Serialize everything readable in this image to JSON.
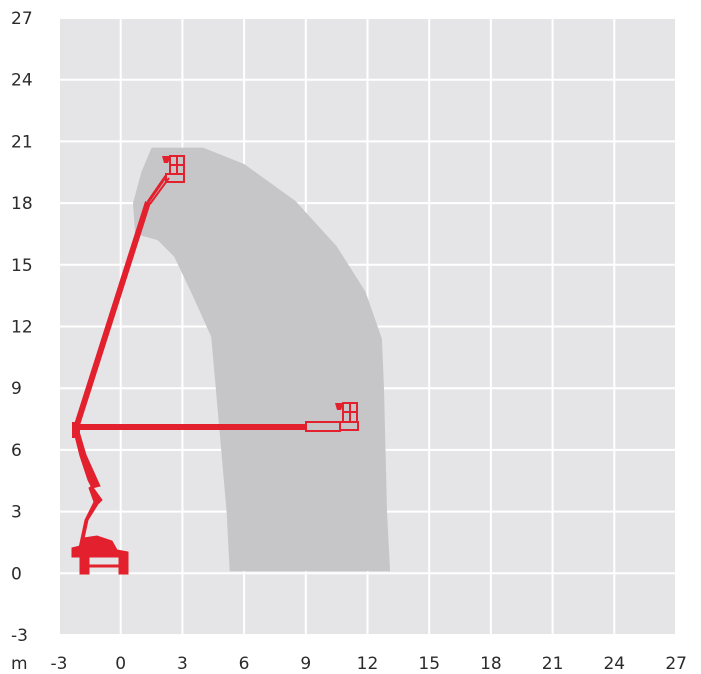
{
  "chart_data": {
    "type": "area",
    "title": "",
    "xlabel": "m",
    "ylabel": "",
    "xlim": [
      -3,
      27
    ],
    "ylim": [
      -3,
      27
    ],
    "x_ticks": [
      -3,
      0,
      3,
      6,
      9,
      12,
      15,
      18,
      21,
      24,
      27
    ],
    "y_ticks": [
      -3,
      0,
      3,
      6,
      9,
      12,
      15,
      18,
      21,
      24,
      27
    ],
    "grid": true,
    "colors": {
      "plot_background": "#e5e5e7",
      "grid": "#ffffff",
      "working_envelope": "#c6c6c8",
      "machine": "#e3202d"
    },
    "working_envelope": [
      [
        1.5,
        20.7
      ],
      [
        4.0,
        20.7
      ],
      [
        6.0,
        19.9
      ],
      [
        8.5,
        18.1
      ],
      [
        10.5,
        15.9
      ],
      [
        11.9,
        13.7
      ],
      [
        12.7,
        11.4
      ],
      [
        12.8,
        9.0
      ],
      [
        12.95,
        3.0
      ],
      [
        13.1,
        0.1
      ],
      [
        5.3,
        0.1
      ],
      [
        5.15,
        3.0
      ],
      [
        4.8,
        7.0
      ],
      [
        4.4,
        11.5
      ],
      [
        3.5,
        13.5
      ],
      [
        2.6,
        15.4
      ],
      [
        1.8,
        16.2
      ],
      [
        0.7,
        16.5
      ],
      [
        0.6,
        18.0
      ],
      [
        1.0,
        19.5
      ]
    ],
    "machine_positions": [
      {
        "label": "",
        "platform_height": 19.7,
        "outreach": 2.5
      },
      {
        "label": "",
        "platform_height": 7.2,
        "outreach": 11.2
      }
    ]
  }
}
